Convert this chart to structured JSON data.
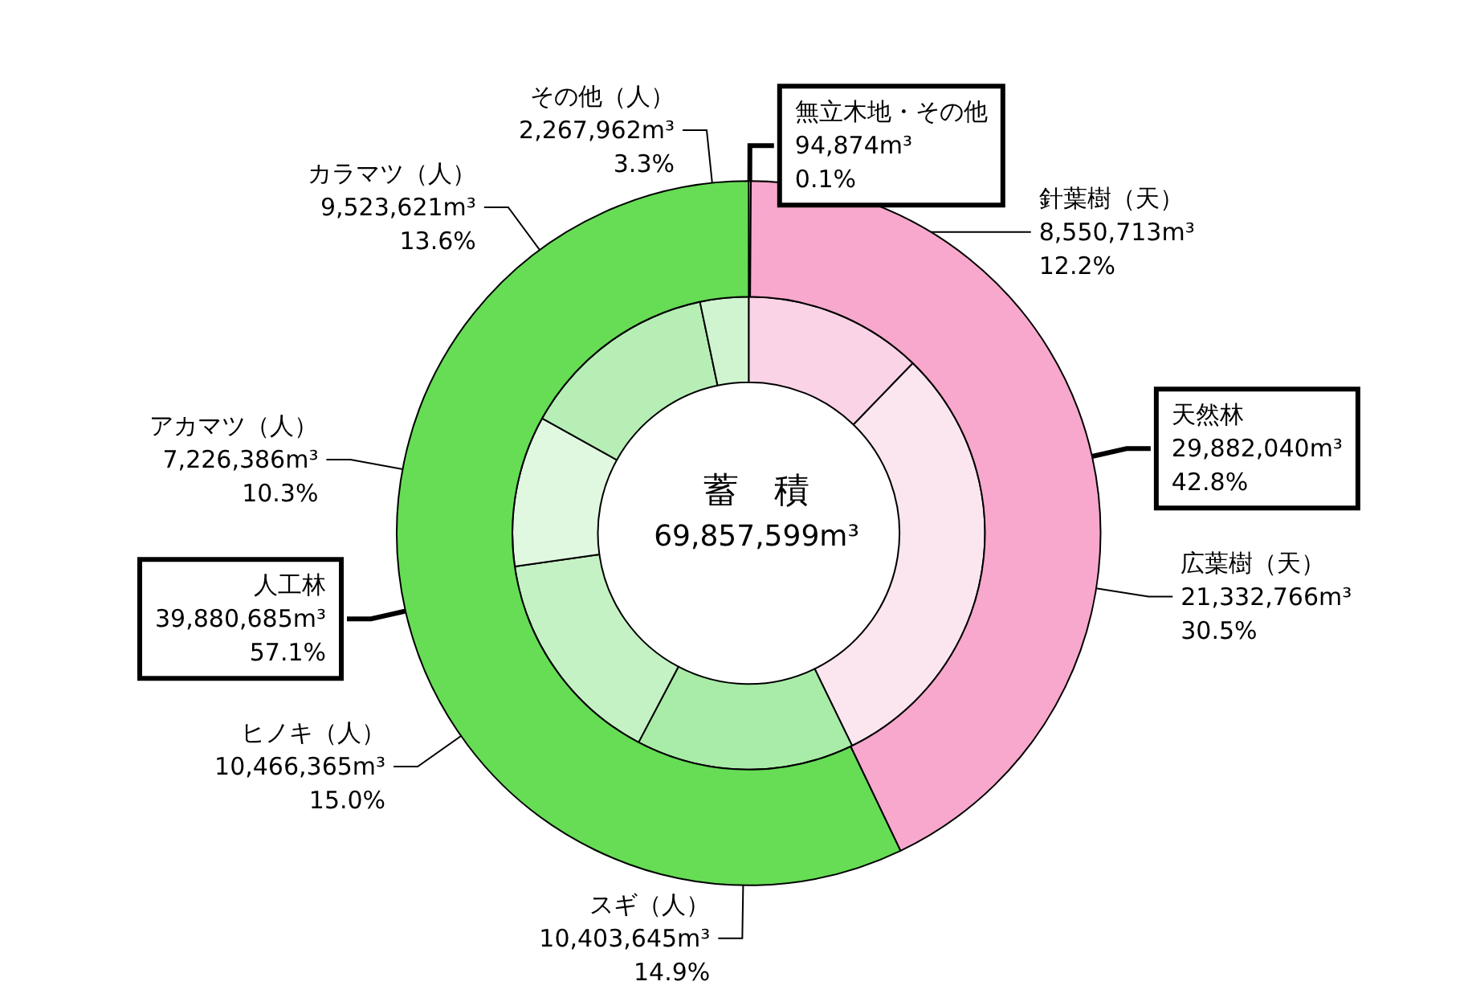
{
  "chart_data": [
    {
      "type": "donut",
      "title": "蓄　積",
      "subtitle": "69,857,599m³",
      "legend": false,
      "categories": [
        "針葉樹（天）",
        "広葉樹（天）",
        "スギ（人）",
        "ヒノキ（人）",
        "アカマツ（人）",
        "カラマツ（人）",
        "その他（人）"
      ],
      "values": [
        12.2,
        30.5,
        14.9,
        15.0,
        10.3,
        13.6,
        3.3
      ],
      "colors": [
        "#fbd3e6",
        "#fbe6f0",
        "#a8eca8",
        "#c4f2c4",
        "#e0f8e0",
        "#b6eeb6",
        "#d0f4d0"
      ],
      "value_labels": [
        "12.2%",
        "30.5%",
        "14.9%",
        "15.0%",
        "10.3%",
        "13.6%",
        "3.3%"
      ],
      "annotations": [
        {
          "text": "8,550,713m³",
          "x": "針葉樹（天）"
        },
        {
          "text": "21,332,766m³",
          "x": "広葉樹（天）"
        },
        {
          "text": "10,403,645m³",
          "x": "スギ（人）"
        },
        {
          "text": "10,466,365m³",
          "x": "ヒノキ（人）"
        },
        {
          "text": "7,226,386m³",
          "x": "アカマツ（人）"
        },
        {
          "text": "9,523,621m³",
          "x": "カラマツ（人）"
        },
        {
          "text": "2,267,962m³",
          "x": "その他（人）"
        }
      ]
    },
    {
      "type": "donut",
      "legend": false,
      "categories": [
        "無立木地・その他",
        "天然林",
        "人工林"
      ],
      "values": [
        0.1,
        42.8,
        57.1
      ],
      "colors": [
        "#ffffff",
        "#f7a8cc",
        "#66dd55"
      ],
      "value_labels": [
        "0.1%",
        "42.8%",
        "57.1%"
      ],
      "annotations": [
        {
          "text": "94,874m³",
          "x": "無立木地・その他"
        },
        {
          "text": "29,882,040m³",
          "x": "天然林"
        },
        {
          "text": "39,880,685m³",
          "x": "人工林"
        }
      ]
    }
  ]
}
